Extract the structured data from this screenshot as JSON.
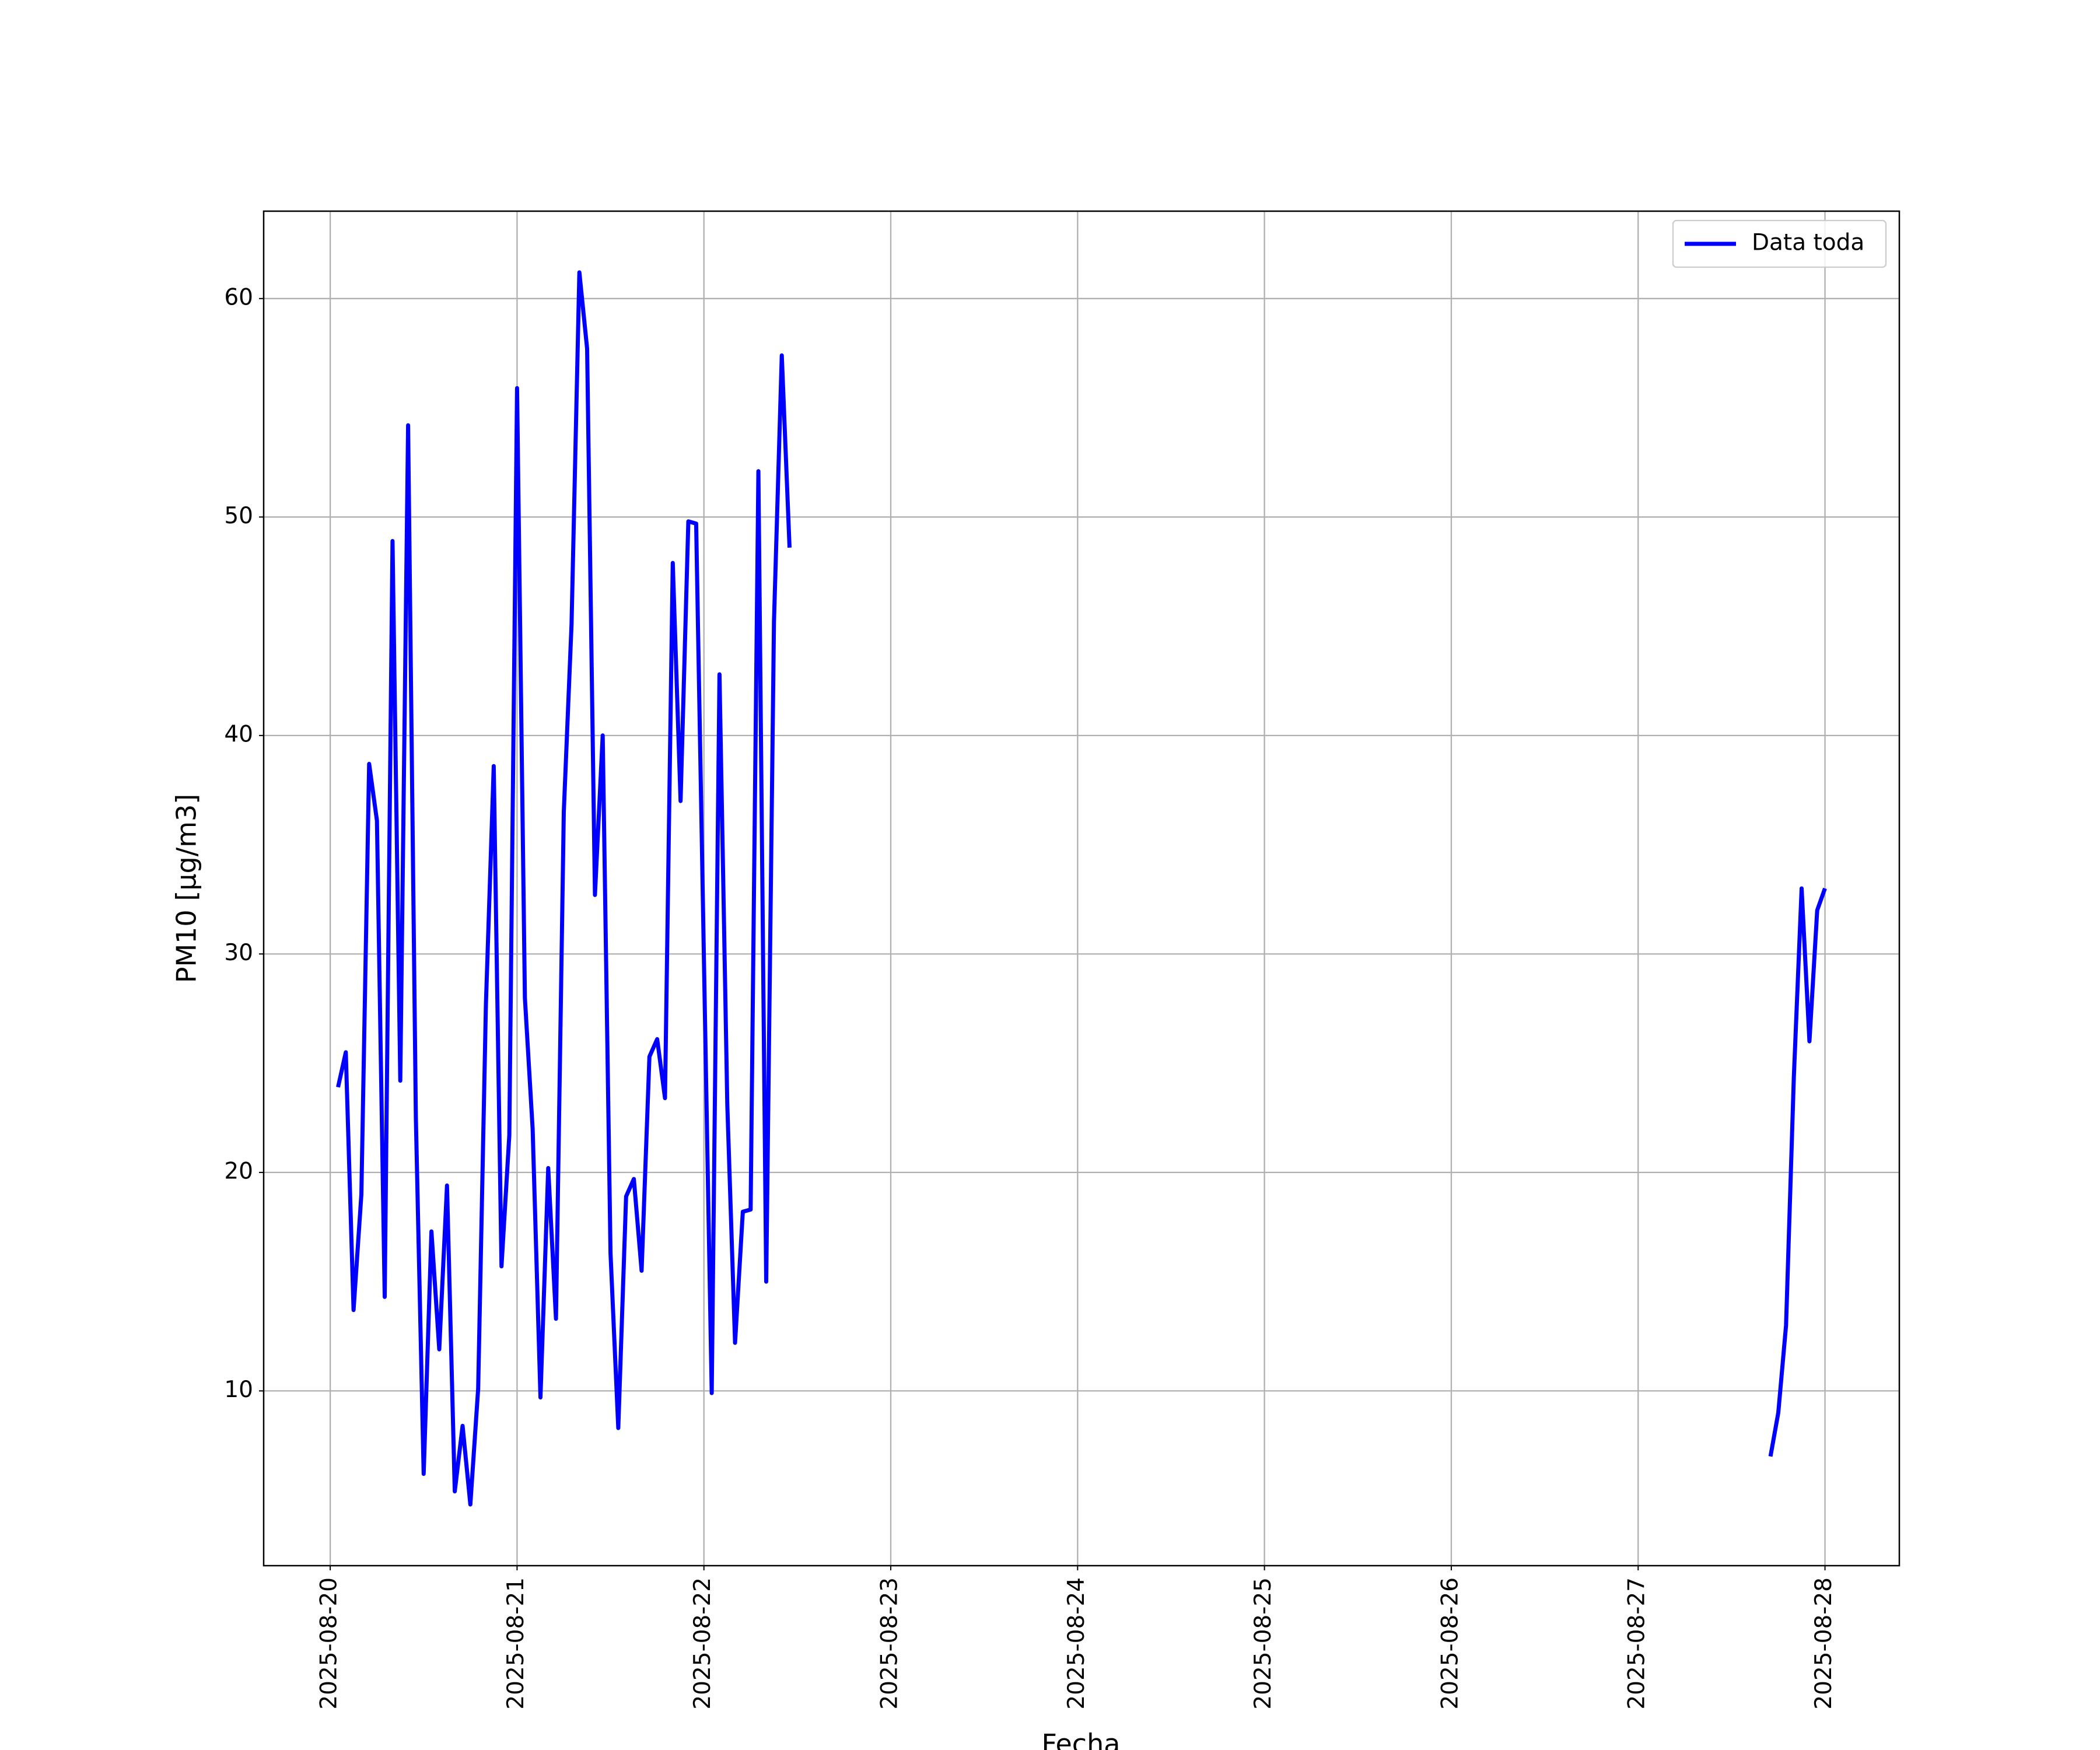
{
  "chart_data": {
    "type": "line",
    "xlabel": "Fecha",
    "ylabel": "PM10 [μg/m3]",
    "x": [
      "2025-08-20 01:00",
      "2025-08-20 02:00",
      "2025-08-20 03:00",
      "2025-08-20 04:00",
      "2025-08-20 05:00",
      "2025-08-20 06:00",
      "2025-08-20 07:00",
      "2025-08-20 08:00",
      "2025-08-20 09:00",
      "2025-08-20 10:00",
      "2025-08-20 11:00",
      "2025-08-20 12:00",
      "2025-08-20 13:00",
      "2025-08-20 14:00",
      "2025-08-20 15:00",
      "2025-08-20 16:00",
      "2025-08-20 17:00",
      "2025-08-20 18:00",
      "2025-08-20 19:00",
      "2025-08-20 20:00",
      "2025-08-20 21:00",
      "2025-08-20 22:00",
      "2025-08-20 23:00",
      "2025-08-21 00:00",
      "2025-08-21 01:00",
      "2025-08-21 02:00",
      "2025-08-21 03:00",
      "2025-08-21 04:00",
      "2025-08-21 05:00",
      "2025-08-21 06:00",
      "2025-08-21 07:00",
      "2025-08-21 08:00",
      "2025-08-21 09:00",
      "2025-08-21 10:00",
      "2025-08-21 11:00",
      "2025-08-21 12:00",
      "2025-08-21 13:00",
      "2025-08-21 14:00",
      "2025-08-21 15:00",
      "2025-08-21 16:00",
      "2025-08-21 17:00",
      "2025-08-21 18:00",
      "2025-08-21 19:00",
      "2025-08-21 20:00",
      "2025-08-21 21:00",
      "2025-08-21 22:00",
      "2025-08-21 23:00",
      "2025-08-22 00:00",
      "2025-08-22 01:00",
      "2025-08-22 02:00",
      "2025-08-22 03:00",
      "2025-08-22 04:00",
      "2025-08-22 05:00",
      "2025-08-22 06:00",
      "2025-08-22 07:00",
      "2025-08-22 08:00",
      "2025-08-22 09:00",
      "2025-08-22 10:00",
      "2025-08-22 11:00",
      "2025-08-22 12:00",
      "2025-08-27 17:00",
      "2025-08-27 18:00",
      "2025-08-27 19:00",
      "2025-08-27 20:00",
      "2025-08-27 21:00",
      "2025-08-27 22:00",
      "2025-08-27 23:00",
      "2025-08-28 00:00"
    ],
    "series": [
      {
        "name": "Data toda",
        "color": "#0000ff",
        "values": [
          23.9,
          25.5,
          13.7,
          19.0,
          38.7,
          36.1,
          14.3,
          48.9,
          24.2,
          54.2,
          22.5,
          6.2,
          17.3,
          11.9,
          19.4,
          5.4,
          8.4,
          4.8,
          10.1,
          27.7,
          38.6,
          15.7,
          21.7,
          55.9,
          28.0,
          22.0,
          9.7,
          20.2,
          13.3,
          36.5,
          45.1,
          61.2,
          57.7,
          32.7,
          40.0,
          16.3,
          8.3,
          18.9,
          19.7,
          15.5,
          25.3,
          26.1,
          23.4,
          47.9,
          37.0,
          49.8,
          49.7,
          29.8,
          9.9,
          42.8,
          23.1,
          12.2,
          18.2,
          18.3,
          52.1,
          15.0,
          45.2,
          57.4,
          48.6,
          null,
          7.0,
          9.0,
          13.0,
          24.4,
          33.0,
          26.0,
          32.0,
          33.0
        ]
      }
    ],
    "xlim": [
      "2025-08-19 15:27",
      "2025-08-28 09:33"
    ],
    "xticks": [
      "2025-08-20",
      "2025-08-21",
      "2025-08-22",
      "2025-08-23",
      "2025-08-24",
      "2025-08-25",
      "2025-08-26",
      "2025-08-27",
      "2025-08-28"
    ],
    "ylim": [
      2.0,
      64.0
    ],
    "yticks": [
      10,
      20,
      30,
      40,
      50,
      60
    ],
    "grid": true,
    "legend": "upper right"
  }
}
